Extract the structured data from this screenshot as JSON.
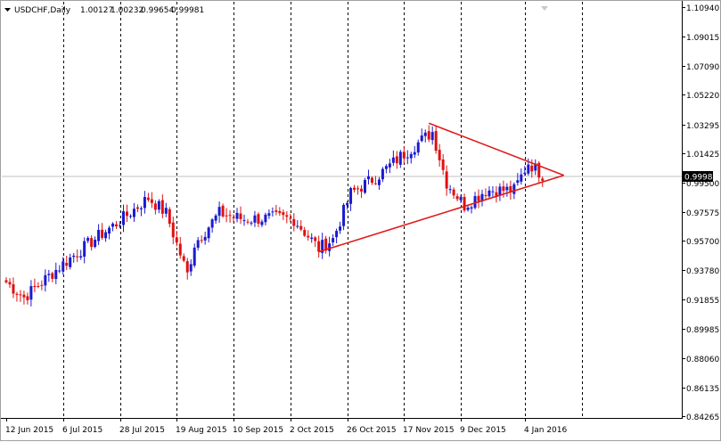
{
  "header": {
    "symbol_label": "USDCHF,Daily",
    "ohlc": [
      "1.00127",
      "1.00232",
      "0.99654",
      "0.99981"
    ]
  },
  "colors": {
    "background": "#ffffff",
    "bull": "#1a1ad0",
    "bear": "#e01010",
    "pattern": "#e01b1b",
    "grid": "#000000",
    "price_line": "#c0c0c0"
  },
  "chart_data": {
    "type": "candlestick",
    "title": "USDCHF,Daily",
    "ylim": [
      0.8426,
      1.1094
    ],
    "grid": "vertical dashed",
    "current_price": "0.99981",
    "y_tick_labels": [
      "1.10940",
      "1.09015",
      "1.07090",
      "1.05220",
      "1.03295",
      "1.01425",
      "0.99500",
      "0.97575",
      "0.95700",
      "0.93780",
      "0.91855",
      "0.89985",
      "0.88060",
      "0.86135",
      "0.84265"
    ],
    "x_tick_labels": [
      "12 Jun 2015",
      "6 Jul 2015",
      "28 Jul 2015",
      "19 Aug 2015",
      "10 Sep 2015",
      "2 Oct 2015",
      "26 Oct 2015",
      "17 Nov 2015",
      "9 Dec 2015",
      "4 Jan 2016"
    ],
    "anchors": [
      {
        "date": "2015-06-12",
        "close": 0.93
      },
      {
        "date": "2015-06-20",
        "close": 0.92
      },
      {
        "date": "2015-07-06",
        "close": 0.942
      },
      {
        "date": "2015-07-20",
        "close": 0.96
      },
      {
        "date": "2015-07-28",
        "close": 0.97
      },
      {
        "date": "2015-08-07",
        "close": 0.985
      },
      {
        "date": "2015-08-14",
        "close": 0.975
      },
      {
        "date": "2015-08-24",
        "close": 0.935
      },
      {
        "date": "2015-08-26",
        "close": 0.955
      },
      {
        "date": "2015-09-04",
        "close": 0.975
      },
      {
        "date": "2015-09-15",
        "close": 0.971
      },
      {
        "date": "2015-09-28",
        "close": 0.972
      },
      {
        "date": "2015-10-05",
        "close": 0.971
      },
      {
        "date": "2015-10-14",
        "close": 0.952
      },
      {
        "date": "2015-10-20",
        "close": 0.958
      },
      {
        "date": "2015-10-27",
        "close": 0.988
      },
      {
        "date": "2015-11-06",
        "close": 1.0
      },
      {
        "date": "2015-11-16",
        "close": 1.012
      },
      {
        "date": "2015-11-27",
        "close": 1.028
      },
      {
        "date": "2015-12-03",
        "close": 0.995
      },
      {
        "date": "2015-12-10",
        "close": 0.98
      },
      {
        "date": "2015-12-18",
        "close": 0.99
      },
      {
        "date": "2015-12-30",
        "close": 0.99
      },
      {
        "date": "2016-01-05",
        "close": 1.008
      },
      {
        "date": "2016-01-11",
        "close": 1.0
      }
    ],
    "pattern": {
      "type": "symmetrical triangle",
      "points": [
        {
          "date": "2015-10-14",
          "price": 0.9498
        },
        {
          "date": "2015-11-26",
          "price": 1.0337
        },
        {
          "date": "2016-01-19",
          "price": 0.9997
        }
      ]
    }
  }
}
